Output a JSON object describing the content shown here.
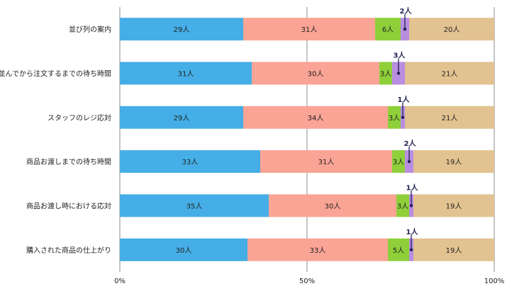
{
  "chart_data": {
    "type": "bar",
    "orientation": "horizontal",
    "stacked": "percent",
    "categories": [
      "並び列の案内",
      "並んでから注文するまでの待ち時間",
      "スタッフのレジ応対",
      "商品お渡しまでの待ち時間",
      "商品お渡し時における応対",
      "購入された商品の仕上がり"
    ],
    "series": [
      {
        "values": [
          29,
          31,
          29,
          33,
          35,
          30
        ]
      },
      {
        "values": [
          31,
          30,
          34,
          31,
          30,
          33
        ]
      },
      {
        "values": [
          6,
          3,
          3,
          3,
          3,
          5
        ]
      },
      {
        "values": [
          2,
          3,
          1,
          2,
          1,
          1
        ]
      },
      {
        "values": [
          20,
          21,
          21,
          19,
          19,
          19
        ]
      }
    ],
    "segment_label_suffix": "人",
    "x_ticks": [
      "0%",
      "50%",
      "100%"
    ],
    "xlim": [
      0,
      100
    ],
    "grid": "vertical",
    "legend": "none",
    "colors": [
      "#45aee6",
      "#faa496",
      "#8ecf3a",
      "#b98ee0",
      "#e2c291"
    ],
    "callout_series_index": 3,
    "callout_color": "#222255"
  }
}
